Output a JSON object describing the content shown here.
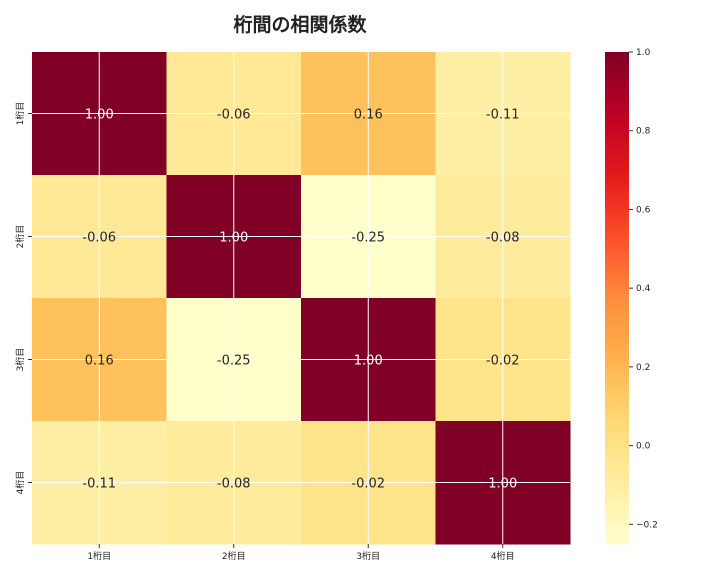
{
  "chart_data": {
    "type": "heatmap",
    "title": "桁間の相関係数",
    "rows": [
      "1桁目",
      "2桁目",
      "3桁目",
      "4桁目"
    ],
    "columns": [
      "1桁目",
      "2桁目",
      "3桁目",
      "4桁目"
    ],
    "values": [
      [
        1.0,
        -0.06,
        0.16,
        -0.11
      ],
      [
        -0.06,
        1.0,
        -0.25,
        -0.08
      ],
      [
        0.16,
        -0.25,
        1.0,
        -0.02
      ],
      [
        -0.11,
        -0.08,
        -0.02,
        1.0
      ]
    ],
    "colormap": "YlOrRd",
    "colormap_stops": [
      "#ffffcc",
      "#ffeda0",
      "#fed976",
      "#feb24c",
      "#fd8d3c",
      "#fc4e2a",
      "#e31a1c",
      "#bd0026",
      "#800026"
    ],
    "vmin": -0.25,
    "vmax": 1.0,
    "colorbar_ticks": [
      -0.2,
      0.0,
      0.2,
      0.4,
      0.6,
      0.8,
      1.0
    ],
    "colorbar_tick_labels": [
      "−0.2",
      "0.0",
      "0.2",
      "0.4",
      "0.6",
      "0.8",
      "1.0"
    ],
    "annotation_format": "2 decimals",
    "grid": true
  }
}
